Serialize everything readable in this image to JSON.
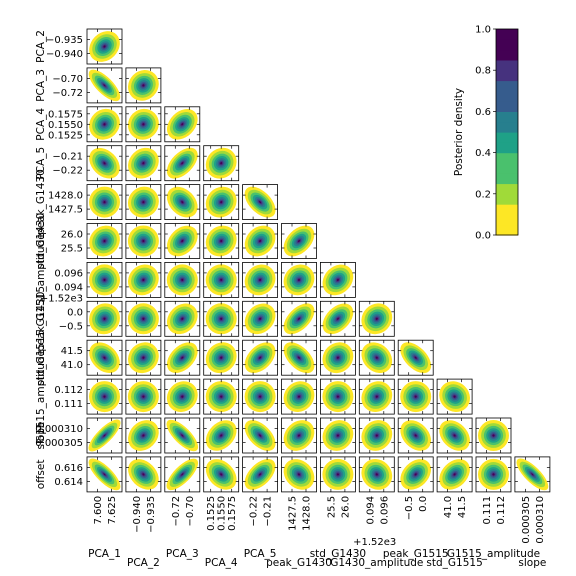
{
  "chart_data": {
    "type": "corner",
    "parameters": [
      "PCA_1",
      "PCA_2",
      "PCA_3",
      "PCA_4",
      "PCA_5",
      "peak_G1430",
      "std_G1430",
      "G1430_amplitude",
      "peak_G1515",
      "std_G1515",
      "G1515_amplitude",
      "slope",
      "offset"
    ],
    "row_labels": [
      "PCA_2",
      "PCA_3",
      "PCA_4",
      "PCA_5",
      "peak_G1430",
      "std_G1430",
      "G1430_amplitude",
      "peak_G1515",
      "std_G1515",
      "G1515_amplitude",
      "slope",
      "offset"
    ],
    "col_labels": [
      "PCA_1",
      "PCA_2",
      "PCA_3",
      "PCA_4",
      "PCA_5",
      "peak_G1430",
      "std_G1430",
      "G1430_amplitude",
      "peak_G1515",
      "std_G1515",
      "G1515_amplitude",
      "slope"
    ],
    "row_ticks": [
      [
        "−0.935",
        "−0.940"
      ],
      [
        "−0.70",
        "−0.72"
      ],
      [
        "0.1575",
        "0.1550",
        "0.1525"
      ],
      [
        "−0.21",
        "−0.22"
      ],
      [
        "1428.0",
        "1427.5"
      ],
      [
        "26.0",
        "25.5"
      ],
      [
        "0.096",
        "0.094"
      ],
      [
        "0.0",
        "−0.5"
      ],
      [
        "41.5",
        "41.0"
      ],
      [
        "0.112",
        "0.111"
      ],
      [
        "0.000310",
        "0.000305"
      ],
      [
        "0.616",
        "0.614"
      ]
    ],
    "row_offsets": [
      "",
      "",
      "",
      "",
      "",
      "",
      "+1.52e3",
      "",
      "",
      "",
      "",
      ""
    ],
    "col_ticks": [
      [
        "7.600",
        "7.625"
      ],
      [
        "−0.940",
        "−0.935"
      ],
      [
        "−0.72",
        "−0.70"
      ],
      [
        "0.1525",
        "0.1550",
        "0.1575"
      ],
      [
        "−0.22",
        "−0.21"
      ],
      [
        "1427.5",
        "1428.0"
      ],
      [
        "25.5",
        "26.0"
      ],
      [
        "0.094",
        "0.096"
      ],
      [
        "−0.5",
        "0.0"
      ],
      [
        "41.0",
        "41.5"
      ],
      [
        "0.111",
        "0.112"
      ],
      [
        "0.000305",
        "0.000310"
      ]
    ],
    "col_offsets": [
      "",
      "",
      "",
      "",
      "",
      "",
      "",
      "+1.52e3",
      "",
      "",
      "",
      ""
    ],
    "correlations": [
      [
        0.2
      ],
      [
        -0.75,
        0.1
      ],
      [
        0.1,
        0.05,
        0.3
      ],
      [
        -0.3,
        0.15,
        0.5,
        0.1
      ],
      [
        0.0,
        0.05,
        -0.3,
        0.1,
        -0.5
      ],
      [
        0.1,
        0.0,
        0.3,
        0.1,
        0.2,
        0.4
      ],
      [
        0.0,
        0.1,
        0.0,
        0.0,
        0.1,
        0.1,
        0.2
      ],
      [
        0.05,
        0.0,
        0.2,
        0.0,
        0.2,
        0.5,
        0.4,
        0.1
      ],
      [
        -0.3,
        0.1,
        0.4,
        0.1,
        0.4,
        -0.5,
        0.1,
        -0.2,
        -0.5
      ],
      [
        0.0,
        0.0,
        0.1,
        0.0,
        0.0,
        0.1,
        0.0,
        0.1,
        0.0,
        -0.1
      ],
      [
        0.85,
        0.2,
        -0.75,
        0.3,
        -0.5,
        0.2,
        0.1,
        0.1,
        -0.3,
        -0.3,
        0.0
      ],
      [
        -0.8,
        -0.3,
        0.75,
        -0.3,
        0.5,
        -0.2,
        0.0,
        -0.1,
        0.3,
        0.3,
        0.0,
        -0.8
      ]
    ],
    "colorbar": {
      "label": "Posterior density",
      "ticks": [
        "1.0",
        "0.8",
        "0.6",
        "0.4",
        "0.2",
        "0.0"
      ],
      "range": [
        0.0,
        1.0
      ],
      "colormap": "viridis_r"
    }
  }
}
